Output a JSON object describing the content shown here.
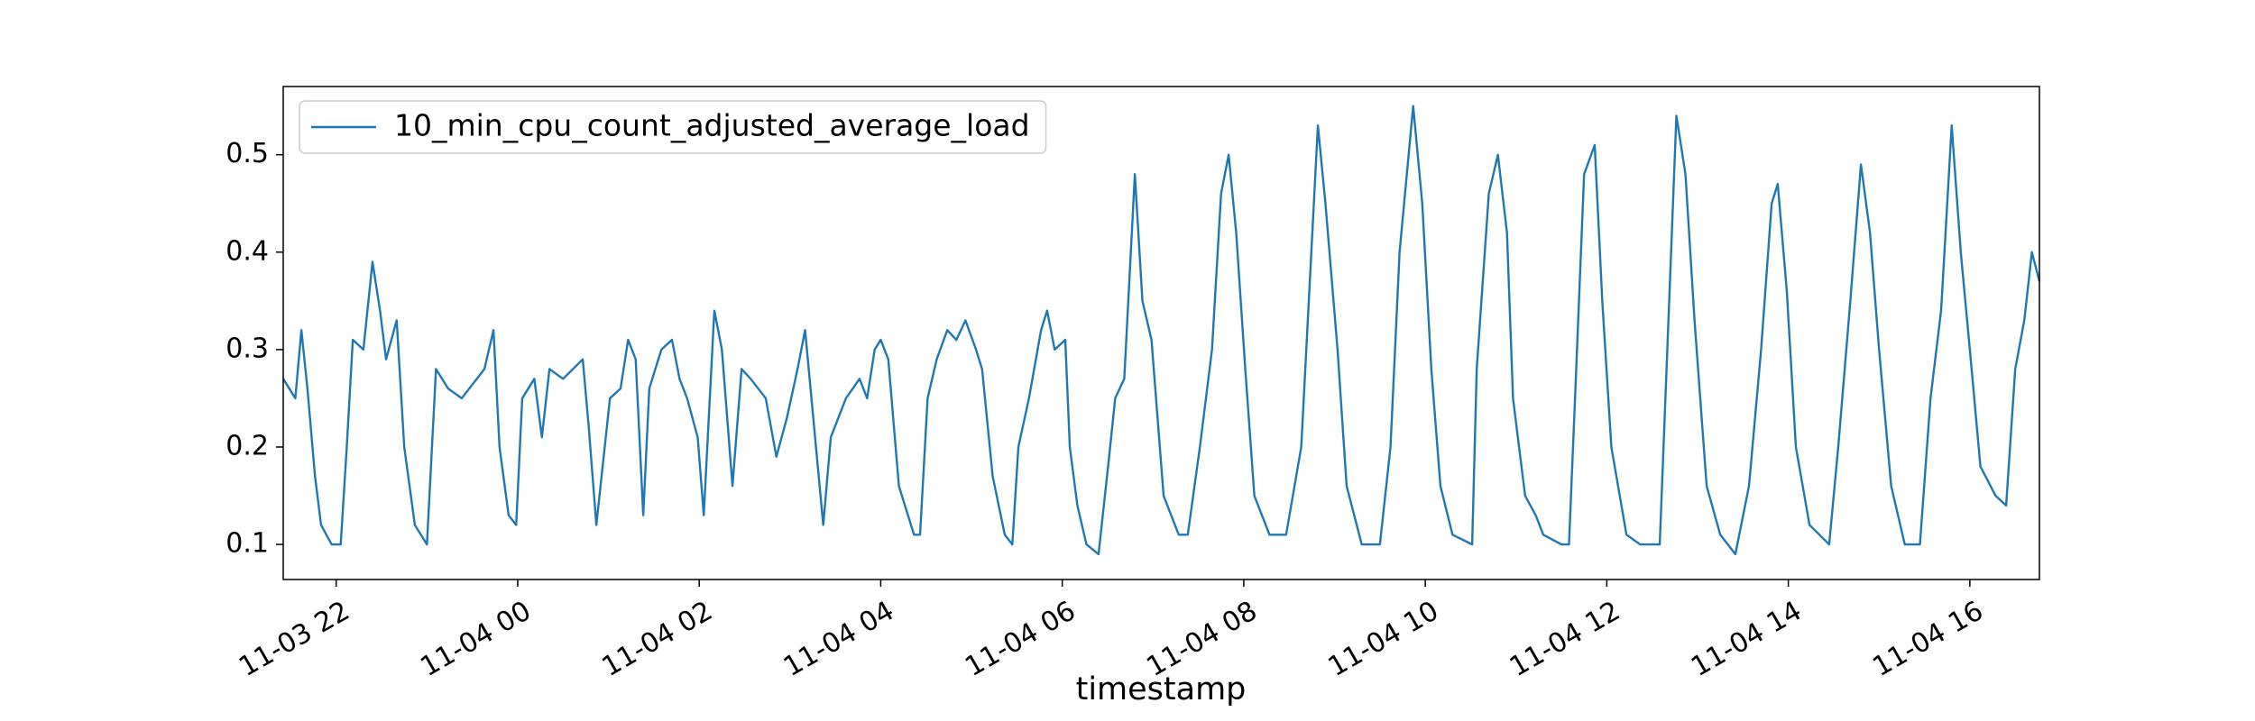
{
  "chart_data": {
    "type": "line",
    "xlabel": "timestamp",
    "legend": "upper left",
    "grid": false,
    "xlim": [
      "11-03 21:25",
      "11-04 16:46"
    ],
    "ylim": [
      0.064,
      0.57
    ],
    "yticks": [
      0.1,
      0.2,
      0.3,
      0.4,
      0.5
    ],
    "xticks": [
      {
        "value": "11-03 22:00",
        "label": "11-03 22"
      },
      {
        "value": "11-04 00:00",
        "label": "11-04 00"
      },
      {
        "value": "11-04 02:00",
        "label": "11-04 02"
      },
      {
        "value": "11-04 04:00",
        "label": "11-04 04"
      },
      {
        "value": "11-04 06:00",
        "label": "11-04 06"
      },
      {
        "value": "11-04 08:00",
        "label": "11-04 08"
      },
      {
        "value": "11-04 10:00",
        "label": "11-04 10"
      },
      {
        "value": "11-04 12:00",
        "label": "11-04 12"
      },
      {
        "value": "11-04 14:00",
        "label": "11-04 14"
      },
      {
        "value": "11-04 16:00",
        "label": "11-04 16"
      }
    ],
    "x": [
      "11-03 21:25",
      "11-03 21:33",
      "11-03 21:37",
      "11-03 21:41",
      "11-03 21:46",
      "11-03 21:50",
      "11-03 21:57",
      "11-03 22:03",
      "11-03 22:07",
      "11-03 22:11",
      "11-03 22:18",
      "11-03 22:24",
      "11-03 22:29",
      "11-03 22:33",
      "11-03 22:40",
      "11-03 22:45",
      "11-03 22:52",
      "11-03 23:00",
      "11-03 23:06",
      "11-03 23:14",
      "11-03 23:23",
      "11-03 23:38",
      "11-03 23:44",
      "11-03 23:48",
      "11-03 23:54",
      "11-03 23:59",
      "11-04 00:03",
      "11-04 00:11",
      "11-04 00:16",
      "11-04 00:21",
      "11-04 00:30",
      "11-04 00:43",
      "11-04 00:47",
      "11-04 00:52",
      "11-04 01:01",
      "11-04 01:08",
      "11-04 01:13",
      "11-04 01:18",
      "11-04 01:23",
      "11-04 01:27",
      "11-04 01:35",
      "11-04 01:42",
      "11-04 01:47",
      "11-04 01:52",
      "11-04 01:59",
      "11-04 02:03",
      "11-04 02:10",
      "11-04 02:15",
      "11-04 02:22",
      "11-04 02:28",
      "11-04 02:34",
      "11-04 02:44",
      "11-04 02:51",
      "11-04 02:58",
      "11-04 03:05",
      "11-04 03:10",
      "11-04 03:16",
      "11-04 03:22",
      "11-04 03:27",
      "11-04 03:37",
      "11-04 03:46",
      "11-04 03:51",
      "11-04 03:56",
      "11-04 04:00",
      "11-04 04:05",
      "11-04 04:12",
      "11-04 04:22",
      "11-04 04:26",
      "11-04 04:31",
      "11-04 04:37",
      "11-04 04:44",
      "11-04 04:50",
      "11-04 04:56",
      "11-04 05:03",
      "11-04 05:07",
      "11-04 05:14",
      "11-04 05:22",
      "11-04 05:27",
      "11-04 05:31",
      "11-04 05:38",
      "11-04 05:46",
      "11-04 05:50",
      "11-04 05:55",
      "11-04 06:02",
      "11-04 06:05",
      "11-04 06:10",
      "11-04 06:16",
      "11-04 06:24",
      "11-04 06:31",
      "11-04 06:35",
      "11-04 06:41",
      "11-04 06:48",
      "11-04 06:53",
      "11-04 06:59",
      "11-04 07:07",
      "11-04 07:17",
      "11-04 07:23",
      "11-04 07:31",
      "11-04 07:39",
      "11-04 07:45",
      "11-04 07:50",
      "11-04 07:55",
      "11-04 08:01",
      "11-04 08:07",
      "11-04 08:17",
      "11-04 08:28",
      "11-04 08:38",
      "11-04 08:43",
      "11-04 08:49",
      "11-04 08:54",
      "11-04 09:02",
      "11-04 09:08",
      "11-04 09:18",
      "11-04 09:30",
      "11-04 09:37",
      "11-04 09:43",
      "11-04 09:52",
      "11-04 09:58",
      "11-04 10:04",
      "11-04 10:10",
      "11-04 10:18",
      "11-04 10:31",
      "11-04 10:34",
      "11-04 10:42",
      "11-04 10:48",
      "11-04 10:54",
      "11-04 10:58",
      "11-04 11:06",
      "11-04 11:13",
      "11-04 11:18",
      "11-04 11:30",
      "11-04 11:35",
      "11-04 11:39",
      "11-04 11:45",
      "11-04 11:52",
      "11-04 11:57",
      "11-04 12:03",
      "11-04 12:13",
      "11-04 12:22",
      "11-04 12:35",
      "11-04 12:40",
      "11-04 12:46",
      "11-04 12:52",
      "11-04 12:58",
      "11-04 13:06",
      "11-04 13:15",
      "11-04 13:25",
      "11-04 13:34",
      "11-04 13:42",
      "11-04 13:49",
      "11-04 13:53",
      "11-04 13:59",
      "11-04 14:05",
      "11-04 14:14",
      "11-04 14:27",
      "11-04 14:33",
      "11-04 14:41",
      "11-04 14:48",
      "11-04 14:54",
      "11-04 15:00",
      "11-04 15:08",
      "11-04 15:17",
      "11-04 15:27",
      "11-04 15:34",
      "11-04 15:41",
      "11-04 15:48",
      "11-04 15:54",
      "11-04 16:00",
      "11-04 16:07",
      "11-04 16:17",
      "11-04 16:24",
      "11-04 16:30",
      "11-04 16:36",
      "11-04 16:41",
      "11-04 16:46"
    ],
    "series": [
      {
        "name": "10_min_cpu_count_adjusted_average_load",
        "color": "#1f77b4",
        "values": [
          0.27,
          0.25,
          0.32,
          0.26,
          0.17,
          0.12,
          0.1,
          0.1,
          0.2,
          0.31,
          0.3,
          0.39,
          0.34,
          0.29,
          0.33,
          0.2,
          0.12,
          0.1,
          0.28,
          0.26,
          0.25,
          0.28,
          0.32,
          0.2,
          0.13,
          0.12,
          0.25,
          0.27,
          0.21,
          0.28,
          0.27,
          0.29,
          0.22,
          0.12,
          0.25,
          0.26,
          0.31,
          0.29,
          0.13,
          0.26,
          0.3,
          0.31,
          0.27,
          0.25,
          0.21,
          0.13,
          0.34,
          0.3,
          0.16,
          0.28,
          0.27,
          0.25,
          0.19,
          0.23,
          0.28,
          0.32,
          0.22,
          0.12,
          0.21,
          0.25,
          0.27,
          0.25,
          0.3,
          0.31,
          0.29,
          0.16,
          0.11,
          0.11,
          0.25,
          0.29,
          0.32,
          0.31,
          0.33,
          0.3,
          0.28,
          0.17,
          0.11,
          0.1,
          0.2,
          0.25,
          0.32,
          0.34,
          0.3,
          0.31,
          0.2,
          0.14,
          0.1,
          0.09,
          0.19,
          0.25,
          0.27,
          0.48,
          0.35,
          0.31,
          0.15,
          0.11,
          0.11,
          0.2,
          0.3,
          0.46,
          0.5,
          0.42,
          0.28,
          0.15,
          0.11,
          0.11,
          0.2,
          0.35,
          0.53,
          0.45,
          0.3,
          0.16,
          0.1,
          0.1,
          0.2,
          0.4,
          0.55,
          0.45,
          0.28,
          0.16,
          0.11,
          0.1,
          0.28,
          0.46,
          0.5,
          0.42,
          0.25,
          0.15,
          0.13,
          0.11,
          0.1,
          0.1,
          0.25,
          0.48,
          0.51,
          0.35,
          0.2,
          0.11,
          0.1,
          0.1,
          0.3,
          0.54,
          0.48,
          0.33,
          0.16,
          0.11,
          0.09,
          0.16,
          0.3,
          0.45,
          0.47,
          0.36,
          0.2,
          0.12,
          0.1,
          0.2,
          0.35,
          0.49,
          0.42,
          0.3,
          0.16,
          0.1,
          0.1,
          0.25,
          0.34,
          0.53,
          0.4,
          0.3,
          0.18,
          0.15,
          0.14,
          0.28,
          0.33,
          0.4,
          0.37
        ]
      }
    ]
  }
}
